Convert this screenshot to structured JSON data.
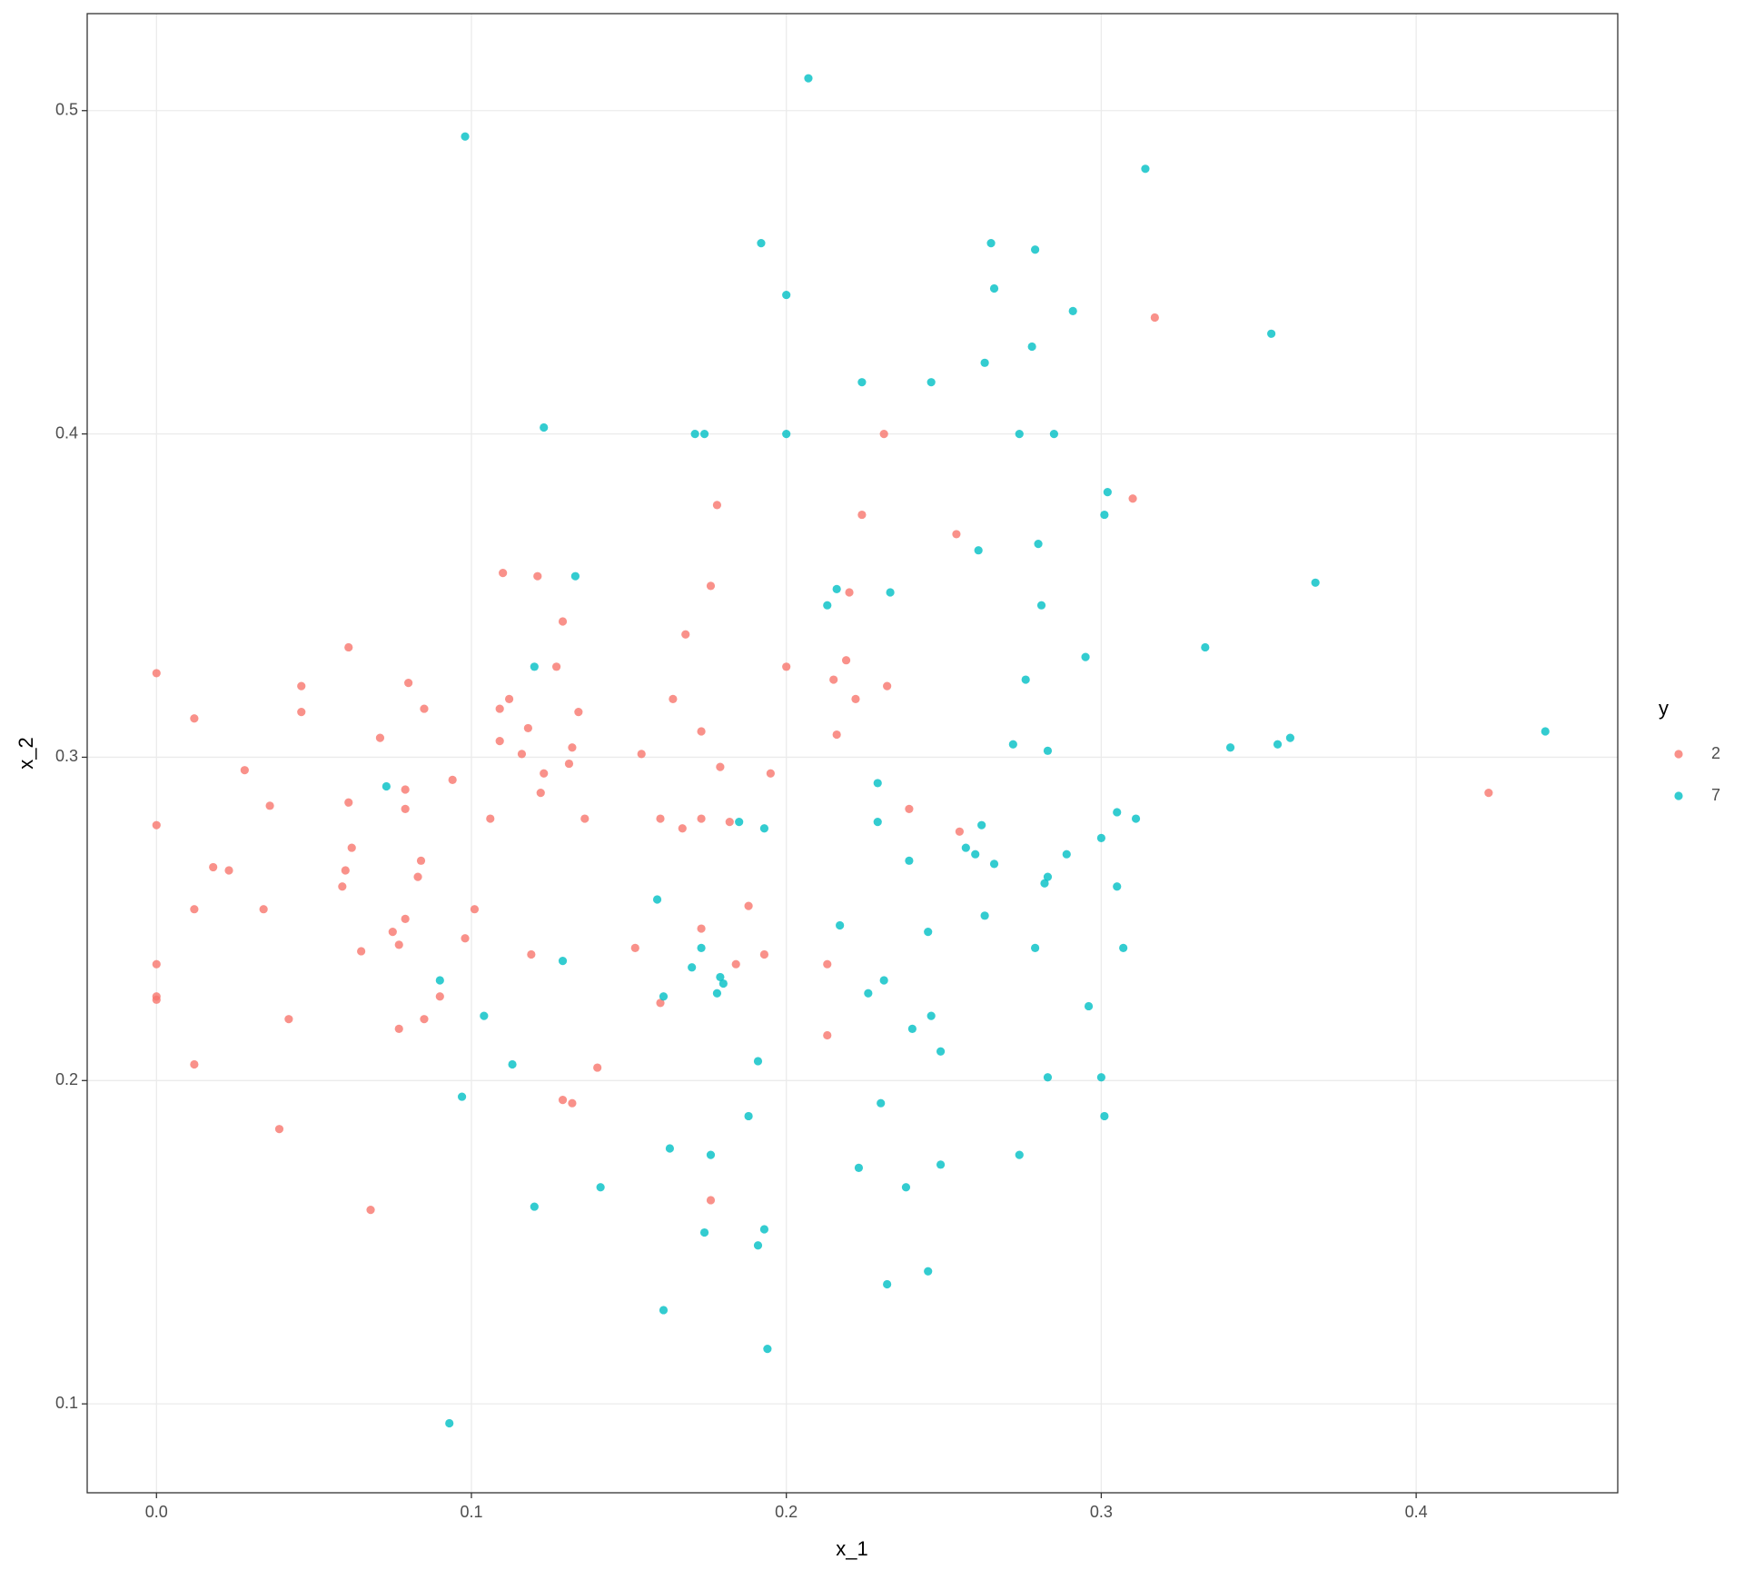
{
  "chart_data": {
    "type": "scatter",
    "x_label": "x_1",
    "y_label": "x_2",
    "legend_title": "y",
    "legend": "right",
    "grid": true,
    "xlim": [
      -0.022,
      0.464
    ],
    "ylim": [
      0.0725,
      0.53
    ],
    "xticks": [
      {
        "value": 0,
        "label": "0.0"
      },
      0.1,
      0.2,
      0.3,
      0.4
    ],
    "yticks": [
      0.1,
      0.2,
      0.3,
      0.4,
      0.5
    ],
    "series": [
      {
        "name": "2",
        "color": "#F8766D",
        "x": [
          0,
          0,
          0,
          0,
          0,
          0.012,
          0.012,
          0.012,
          0.018,
          0.023,
          0.028,
          0.034,
          0.036,
          0.039,
          0.042,
          0.046,
          0.046,
          0.059,
          0.06,
          0.061,
          0.062,
          0.061,
          0.065,
          0.068,
          0.071,
          0.075,
          0.077,
          0.077,
          0.079,
          0.079,
          0.079,
          0.08,
          0.083,
          0.084,
          0.085,
          0.085,
          0.09,
          0.094,
          0.098,
          0.101,
          0.106,
          0.109,
          0.109,
          0.11,
          0.112,
          0.116,
          0.118,
          0.119,
          0.121,
          0.122,
          0.123,
          0.127,
          0.129,
          0.129,
          0.131,
          0.132,
          0.132,
          0.134,
          0.136,
          0.14,
          0.152,
          0.154,
          0.16,
          0.16,
          0.164,
          0.167,
          0.168,
          0.173,
          0.173,
          0.173,
          0.176,
          0.176,
          0.178,
          0.179,
          0.182,
          0.184,
          0.188,
          0.193,
          0.195,
          0.2,
          0.213,
          0.213,
          0.215,
          0.216,
          0.219,
          0.22,
          0.222,
          0.224,
          0.232,
          0.231,
          0.239,
          0.255,
          0.254,
          0.31,
          0.317,
          0.423
        ],
        "y": [
          0.326,
          0.279,
          0.236,
          0.226,
          0.225,
          0.312,
          0.253,
          0.205,
          0.266,
          0.265,
          0.296,
          0.253,
          0.285,
          0.185,
          0.219,
          0.322,
          0.314,
          0.26,
          0.265,
          0.286,
          0.272,
          0.334,
          0.24,
          0.16,
          0.306,
          0.246,
          0.242,
          0.216,
          0.29,
          0.25,
          0.284,
          0.323,
          0.263,
          0.268,
          0.315,
          0.219,
          0.226,
          0.293,
          0.244,
          0.253,
          0.281,
          0.315,
          0.305,
          0.357,
          0.318,
          0.301,
          0.309,
          0.239,
          0.356,
          0.289,
          0.295,
          0.328,
          0.342,
          0.194,
          0.298,
          0.303,
          0.193,
          0.314,
          0.281,
          0.204,
          0.241,
          0.301,
          0.281,
          0.224,
          0.318,
          0.278,
          0.338,
          0.281,
          0.308,
          0.247,
          0.163,
          0.353,
          0.378,
          0.297,
          0.28,
          0.236,
          0.254,
          0.239,
          0.295,
          0.328,
          0.236,
          0.214,
          0.324,
          0.307,
          0.33,
          0.351,
          0.318,
          0.375,
          0.322,
          0.4,
          0.284,
          0.277,
          0.369,
          0.38,
          0.436,
          0.289
        ]
      },
      {
        "name": "7",
        "color": "#00BFC4",
        "x": [
          0.098,
          0.207,
          0.314,
          0.192,
          0.265,
          0.279,
          0.2,
          0.266,
          0.291,
          0.354,
          0.278,
          0.263,
          0.224,
          0.246,
          0.123,
          0.171,
          0.174,
          0.2,
          0.274,
          0.285,
          0.302,
          0.301,
          0.28,
          0.261,
          0.133,
          0.216,
          0.213,
          0.233,
          0.281,
          0.368,
          0.12,
          0.295,
          0.333,
          0.276,
          0.272,
          0.283,
          0.341,
          0.356,
          0.36,
          0.441,
          0.073,
          0.229,
          0.229,
          0.193,
          0.185,
          0.262,
          0.305,
          0.311,
          0.3,
          0.257,
          0.26,
          0.266,
          0.289,
          0.239,
          0.283,
          0.282,
          0.305,
          0.159,
          0.263,
          0.217,
          0.245,
          0.173,
          0.279,
          0.307,
          0.129,
          0.17,
          0.179,
          0.18,
          0.178,
          0.231,
          0.226,
          0.161,
          0.09,
          0.296,
          0.104,
          0.246,
          0.24,
          0.249,
          0.191,
          0.113,
          0.283,
          0.3,
          0.097,
          0.23,
          0.188,
          0.301,
          0.163,
          0.176,
          0.274,
          0.223,
          0.249,
          0.141,
          0.238,
          0.12,
          0.193,
          0.174,
          0.191,
          0.245,
          0.232,
          0.161,
          0.194,
          0.093
        ],
        "y": [
          0.492,
          0.51,
          0.482,
          0.459,
          0.459,
          0.457,
          0.443,
          0.445,
          0.438,
          0.431,
          0.427,
          0.422,
          0.416,
          0.416,
          0.402,
          0.4,
          0.4,
          0.4,
          0.4,
          0.4,
          0.382,
          0.375,
          0.366,
          0.364,
          0.356,
          0.352,
          0.347,
          0.351,
          0.347,
          0.354,
          0.328,
          0.331,
          0.334,
          0.324,
          0.304,
          0.302,
          0.303,
          0.304,
          0.306,
          0.308,
          0.291,
          0.292,
          0.28,
          0.278,
          0.28,
          0.279,
          0.283,
          0.281,
          0.275,
          0.272,
          0.27,
          0.267,
          0.27,
          0.268,
          0.263,
          0.261,
          0.26,
          0.256,
          0.251,
          0.248,
          0.246,
          0.241,
          0.241,
          0.241,
          0.237,
          0.235,
          0.232,
          0.23,
          0.227,
          0.231,
          0.227,
          0.226,
          0.231,
          0.223,
          0.22,
          0.22,
          0.216,
          0.209,
          0.206,
          0.205,
          0.201,
          0.201,
          0.195,
          0.193,
          0.189,
          0.189,
          0.179,
          0.177,
          0.177,
          0.173,
          0.174,
          0.167,
          0.167,
          0.161,
          0.154,
          0.153,
          0.149,
          0.141,
          0.137,
          0.129,
          0.117,
          0.094
        ]
      }
    ]
  }
}
